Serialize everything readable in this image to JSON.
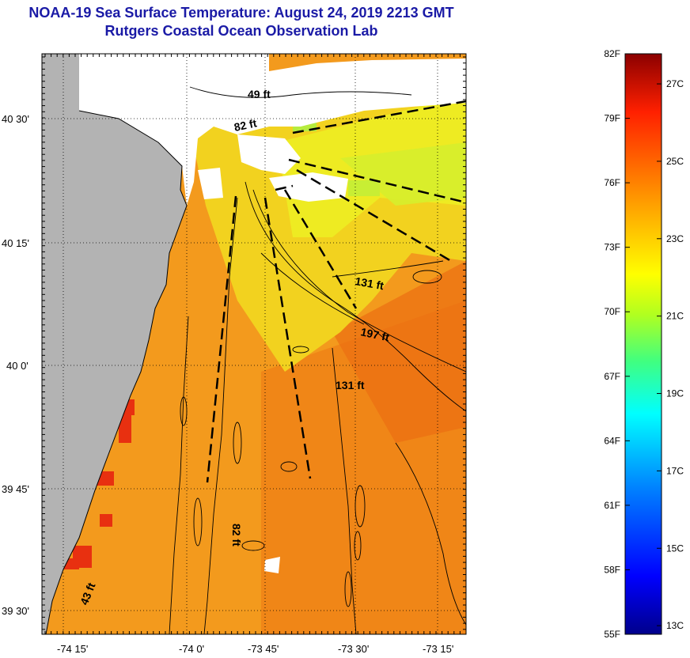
{
  "header": {
    "title": "NOAA-19 Sea Surface Temperature:  August 24, 2019 2213 GMT",
    "subtitle": "Rutgers Coastal Ocean Observation Lab"
  },
  "axes": {
    "lat_labels": [
      "40 30'",
      "40 15'",
      "40 0'",
      "39 45'",
      "39 30'"
    ],
    "lon_labels": [
      "-74 15'",
      "-74 0'",
      "-73 45'",
      "-73 30'",
      "-73 15'"
    ]
  },
  "depth_labels": {
    "d49": "49 ft",
    "d82_top": "82 ft",
    "d131_a": "131 ft",
    "d197": "197 ft",
    "d131_b": "131 ft",
    "d82_bottom": "82 ft",
    "d43": "43 ft"
  },
  "colorbar": {
    "fahrenheit": [
      "82F",
      "79F",
      "76F",
      "73F",
      "70F",
      "67F",
      "64F",
      "61F",
      "58F",
      "55F"
    ],
    "celsius": [
      "27C",
      "25C",
      "23C",
      "21C",
      "19C",
      "17C",
      "15C",
      "13C"
    ],
    "range_f": [
      55,
      82
    ],
    "colors": [
      "#00008b",
      "#0000ff",
      "#0080ff",
      "#00ffff",
      "#40ff80",
      "#80ff00",
      "#ffff00",
      "#ffc000",
      "#ff8000",
      "#ff2000",
      "#8b0000"
    ]
  },
  "colors": {
    "land": "#b4b4b4",
    "cloud": "#ffffff",
    "warm_water": "#f59a1c",
    "cool_water": "#f0e81a"
  }
}
